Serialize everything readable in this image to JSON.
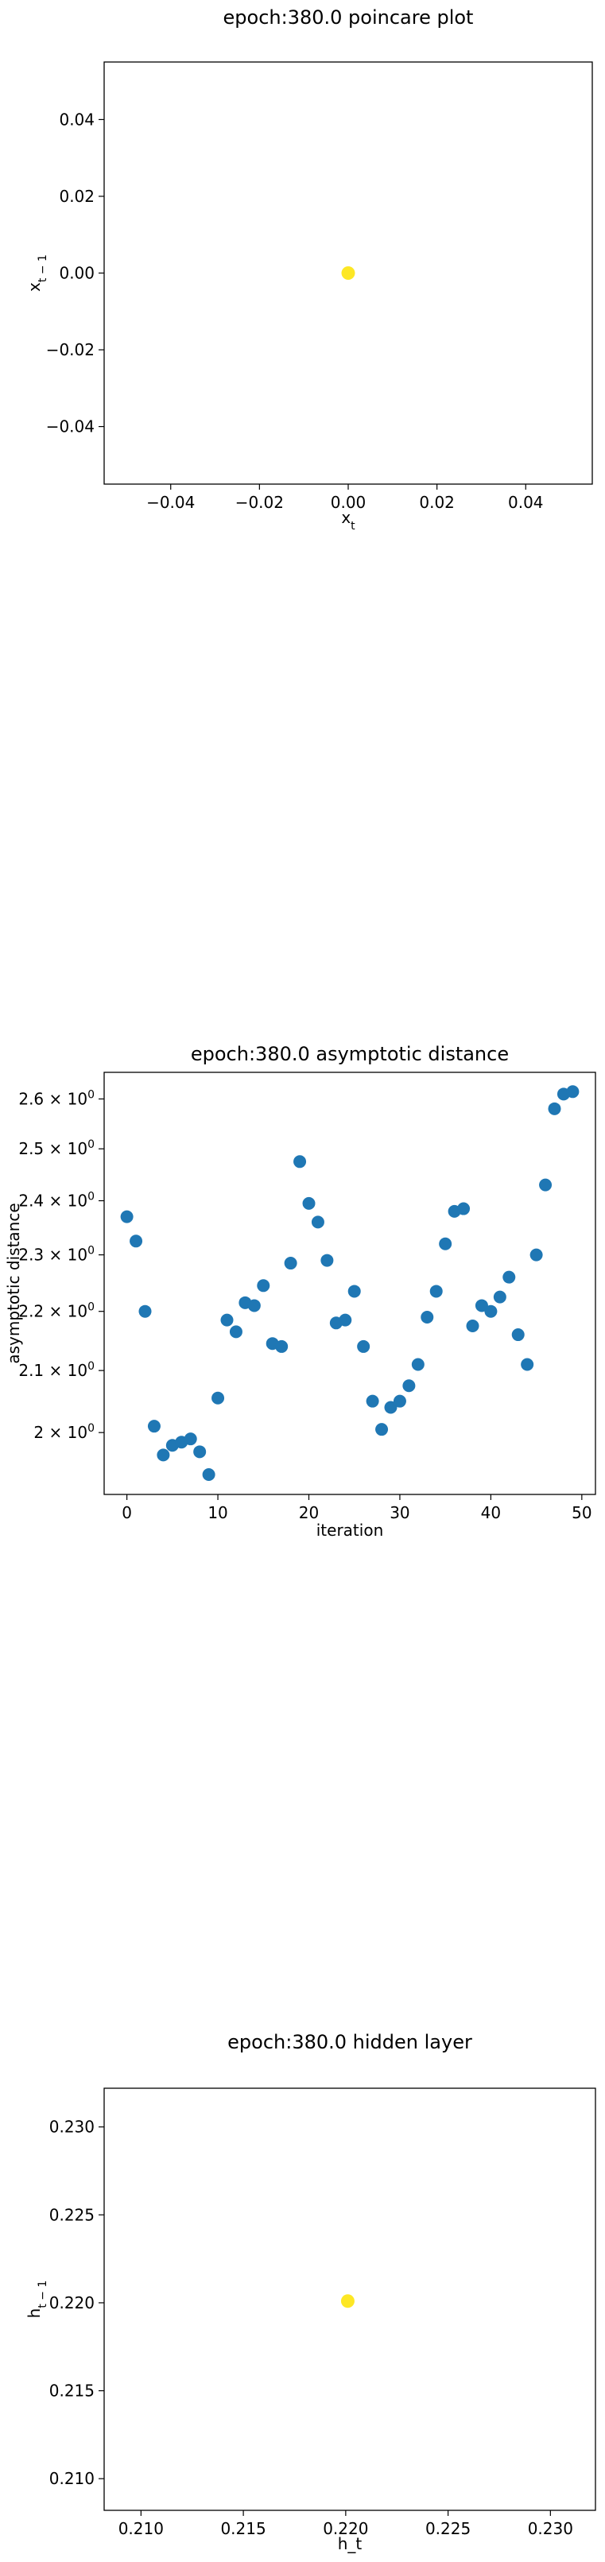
{
  "chart_data": [
    {
      "type": "scatter",
      "title": "epoch:380.0 poincare plot",
      "xlabel": "x",
      "xlabel_sub": "t",
      "ylabel": "x",
      "ylabel_sub": "t − 1",
      "xlim": [
        -0.055,
        0.055
      ],
      "ylim": [
        -0.055,
        0.055
      ],
      "xticks": [
        -0.04,
        -0.02,
        0.0,
        0.02,
        0.04
      ],
      "xtick_labels": [
        "−0.04",
        "−0.02",
        "0.00",
        "0.02",
        "0.04"
      ],
      "yticks": [
        -0.04,
        -0.02,
        0.0,
        0.02,
        0.04
      ],
      "ytick_labels": [
        "−0.04",
        "−0.02",
        "0.00",
        "0.02",
        "0.04"
      ],
      "grid": false,
      "marker_color": "#fde725",
      "points": [
        [
          0.0,
          0.0
        ]
      ]
    },
    {
      "type": "scatter",
      "title": "epoch:380.0 asymptotic distance",
      "xlabel": "iteration",
      "ylabel": "asymptotic distance",
      "yscale": "log",
      "xlim": [
        -2.5,
        51.5
      ],
      "ylim": [
        1.905,
        2.655
      ],
      "xticks": [
        0,
        10,
        20,
        30,
        40,
        50
      ],
      "xtick_labels": [
        "0",
        "10",
        "20",
        "30",
        "40",
        "50"
      ],
      "yticks": [
        2.0,
        2.1,
        2.2,
        2.3,
        2.4,
        2.5,
        2.6
      ],
      "ytick_labels": [
        {
          "mant": "2",
          "exp": "0"
        },
        {
          "mant": "2.1",
          "exp": "0"
        },
        {
          "mant": "2.2",
          "exp": "0"
        },
        {
          "mant": "2.3",
          "exp": "0"
        },
        {
          "mant": "2.4",
          "exp": "0"
        },
        {
          "mant": "2.5",
          "exp": "0"
        },
        {
          "mant": "2.6",
          "exp": "0"
        }
      ],
      "grid": false,
      "marker_color": "#1f77b4",
      "x": [
        0,
        1,
        2,
        3,
        4,
        5,
        6,
        7,
        8,
        9,
        10,
        11,
        12,
        13,
        14,
        15,
        16,
        17,
        18,
        19,
        20,
        21,
        22,
        23,
        24,
        25,
        26,
        27,
        28,
        29,
        30,
        31,
        32,
        33,
        34,
        35,
        36,
        37,
        38,
        39,
        40,
        41,
        42,
        43,
        44,
        45,
        46,
        47,
        48,
        49
      ],
      "y": [
        2.37,
        2.325,
        2.2,
        2.01,
        1.965,
        1.98,
        1.985,
        1.99,
        1.97,
        1.935,
        2.055,
        2.185,
        2.165,
        2.215,
        2.21,
        2.245,
        2.145,
        2.14,
        2.285,
        2.475,
        2.395,
        2.36,
        2.29,
        2.18,
        2.185,
        2.235,
        2.14,
        2.05,
        2.005,
        2.04,
        2.05,
        2.075,
        2.11,
        2.19,
        2.235,
        2.32,
        2.38,
        2.385,
        2.175,
        2.21,
        2.2,
        2.225,
        2.26,
        2.16,
        2.11,
        2.3,
        2.43,
        2.58,
        2.61,
        2.615
      ]
    },
    {
      "type": "scatter",
      "title": "epoch:380.0 hidden layer",
      "xlabel": "h_t",
      "ylabel": "h",
      "ylabel_sub": "t − 1",
      "xlim": [
        0.2082,
        0.2322
      ],
      "ylim": [
        0.2082,
        0.2322
      ],
      "xticks": [
        0.21,
        0.215,
        0.22,
        0.225,
        0.23
      ],
      "xtick_labels": [
        "0.210",
        "0.215",
        "0.220",
        "0.225",
        "0.230"
      ],
      "yticks": [
        0.21,
        0.215,
        0.22,
        0.225,
        0.23
      ],
      "ytick_labels": [
        "0.210",
        "0.215",
        "0.220",
        "0.225",
        "0.230"
      ],
      "grid": false,
      "marker_color": "#fde725",
      "points": [
        [
          0.2201,
          0.2201
        ]
      ]
    }
  ]
}
